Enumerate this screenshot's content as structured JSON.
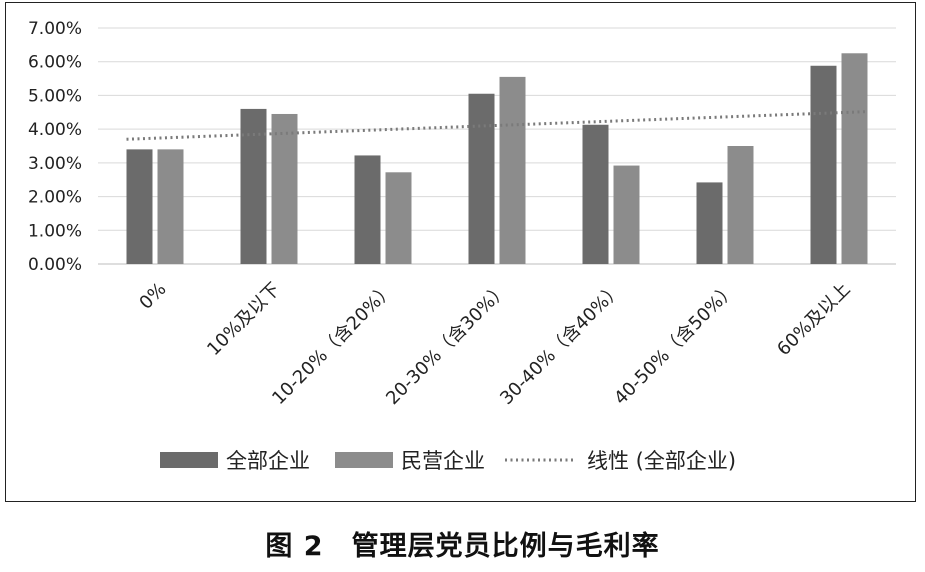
{
  "chart_data": {
    "type": "bar",
    "title": "",
    "xlabel": "",
    "ylabel": "",
    "categories": [
      "0%",
      "10%及以下",
      "10-20%（含20%）",
      "20-30%（含30%）",
      "30-40%（含40%）",
      "40-50%（含50%）",
      "60%及以上"
    ],
    "series": [
      {
        "name": "全部企业",
        "values": [
          3.4,
          4.6,
          3.22,
          5.05,
          4.13,
          2.42,
          5.88
        ],
        "color": "#6b6b6b"
      },
      {
        "name": "民营企业",
        "values": [
          3.4,
          4.45,
          2.72,
          5.55,
          2.92,
          3.5,
          6.25
        ],
        "color": "#8c8c8c"
      }
    ],
    "trendline": {
      "name": "线性 (全部企业)",
      "of_series": "全部企业",
      "type": "linear",
      "start": 3.7,
      "end": 4.52,
      "color": "#7a7a7a"
    },
    "ylim": [
      0,
      7
    ],
    "yticks": [
      "0.00%",
      "1.00%",
      "2.00%",
      "3.00%",
      "4.00%",
      "5.00%",
      "6.00%",
      "7.00%"
    ],
    "grid": true,
    "legend_position": "bottom"
  },
  "caption": "图 2　管理层党员比例与毛利率"
}
